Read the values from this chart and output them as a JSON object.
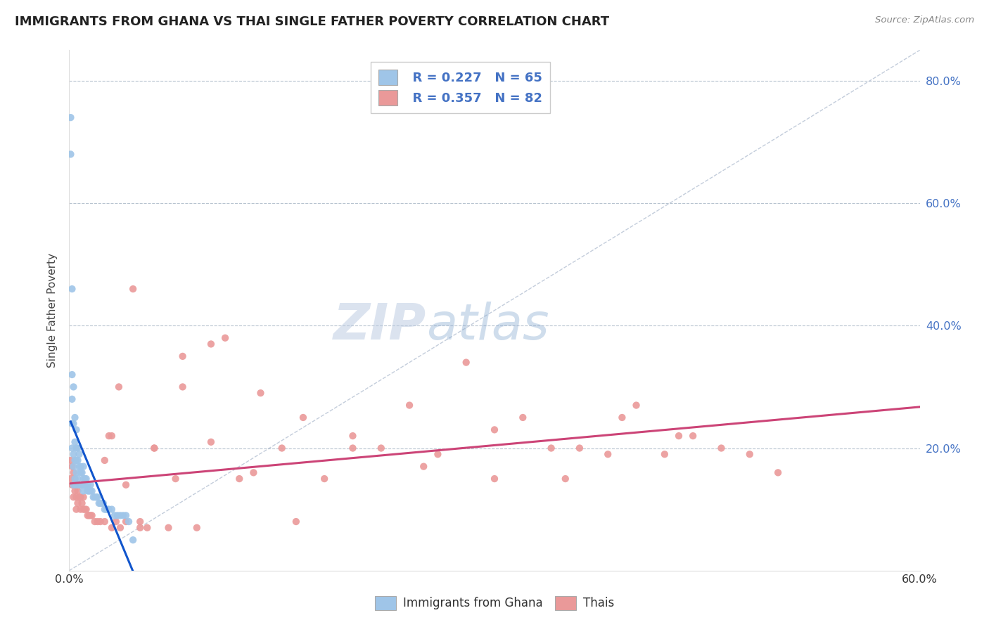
{
  "title": "IMMIGRANTS FROM GHANA VS THAI SINGLE FATHER POVERTY CORRELATION CHART",
  "source_text": "Source: ZipAtlas.com",
  "ylabel": "Single Father Poverty",
  "xlim": [
    0.0,
    0.6
  ],
  "ylim": [
    0.0,
    0.85
  ],
  "watermark_zip": "ZIP",
  "watermark_atlas": "atlas",
  "legend_r1": "R = 0.227",
  "legend_n1": "N = 65",
  "legend_r2": "R = 0.357",
  "legend_n2": "N = 82",
  "color_ghana": "#9fc5e8",
  "color_thai": "#ea9999",
  "color_trendline_ghana": "#1155cc",
  "color_trendline_thai": "#cc4477",
  "color_grid": "#b8c4d0",
  "color_diagonal": "#aab8cc",
  "ghana_x": [
    0.001,
    0.001,
    0.002,
    0.002,
    0.002,
    0.002,
    0.002,
    0.003,
    0.003,
    0.003,
    0.003,
    0.003,
    0.004,
    0.004,
    0.004,
    0.004,
    0.005,
    0.005,
    0.005,
    0.005,
    0.005,
    0.006,
    0.006,
    0.006,
    0.007,
    0.007,
    0.007,
    0.008,
    0.008,
    0.008,
    0.009,
    0.009,
    0.01,
    0.01,
    0.01,
    0.011,
    0.011,
    0.012,
    0.012,
    0.013,
    0.013,
    0.014,
    0.015,
    0.015,
    0.016,
    0.017,
    0.018,
    0.019,
    0.02,
    0.021,
    0.022,
    0.023,
    0.024,
    0.025,
    0.026,
    0.027,
    0.028,
    0.03,
    0.032,
    0.034,
    0.036,
    0.038,
    0.04,
    0.042,
    0.045
  ],
  "ghana_y": [
    0.74,
    0.68,
    0.46,
    0.32,
    0.28,
    0.24,
    0.2,
    0.3,
    0.24,
    0.19,
    0.17,
    0.14,
    0.25,
    0.21,
    0.18,
    0.15,
    0.23,
    0.2,
    0.18,
    0.16,
    0.14,
    0.2,
    0.18,
    0.15,
    0.19,
    0.17,
    0.14,
    0.17,
    0.16,
    0.14,
    0.16,
    0.14,
    0.17,
    0.15,
    0.13,
    0.15,
    0.14,
    0.15,
    0.14,
    0.14,
    0.13,
    0.13,
    0.14,
    0.13,
    0.13,
    0.12,
    0.12,
    0.12,
    0.12,
    0.11,
    0.11,
    0.11,
    0.11,
    0.1,
    0.1,
    0.1,
    0.1,
    0.1,
    0.09,
    0.09,
    0.09,
    0.09,
    0.09,
    0.08,
    0.05
  ],
  "thai_x": [
    0.001,
    0.001,
    0.002,
    0.002,
    0.003,
    0.003,
    0.003,
    0.004,
    0.004,
    0.005,
    0.005,
    0.005,
    0.006,
    0.006,
    0.007,
    0.008,
    0.008,
    0.009,
    0.01,
    0.01,
    0.011,
    0.012,
    0.013,
    0.014,
    0.015,
    0.016,
    0.018,
    0.02,
    0.022,
    0.025,
    0.028,
    0.03,
    0.033,
    0.036,
    0.04,
    0.045,
    0.05,
    0.055,
    0.06,
    0.07,
    0.08,
    0.09,
    0.1,
    0.11,
    0.12,
    0.135,
    0.15,
    0.165,
    0.18,
    0.2,
    0.22,
    0.24,
    0.26,
    0.28,
    0.3,
    0.32,
    0.34,
    0.36,
    0.38,
    0.4,
    0.42,
    0.44,
    0.46,
    0.48,
    0.5,
    0.03,
    0.04,
    0.06,
    0.08,
    0.1,
    0.13,
    0.16,
    0.2,
    0.25,
    0.3,
    0.35,
    0.39,
    0.43,
    0.025,
    0.035,
    0.05,
    0.075
  ],
  "thai_y": [
    0.18,
    0.15,
    0.17,
    0.14,
    0.16,
    0.14,
    0.12,
    0.15,
    0.13,
    0.14,
    0.12,
    0.1,
    0.13,
    0.11,
    0.12,
    0.12,
    0.1,
    0.11,
    0.12,
    0.1,
    0.1,
    0.1,
    0.09,
    0.09,
    0.09,
    0.09,
    0.08,
    0.08,
    0.08,
    0.08,
    0.22,
    0.07,
    0.08,
    0.07,
    0.08,
    0.46,
    0.07,
    0.07,
    0.2,
    0.07,
    0.35,
    0.07,
    0.37,
    0.38,
    0.15,
    0.29,
    0.2,
    0.25,
    0.15,
    0.22,
    0.2,
    0.27,
    0.19,
    0.34,
    0.15,
    0.25,
    0.2,
    0.2,
    0.19,
    0.27,
    0.19,
    0.22,
    0.2,
    0.19,
    0.16,
    0.22,
    0.14,
    0.2,
    0.3,
    0.21,
    0.16,
    0.08,
    0.2,
    0.17,
    0.23,
    0.15,
    0.25,
    0.22,
    0.18,
    0.3,
    0.08,
    0.15
  ]
}
